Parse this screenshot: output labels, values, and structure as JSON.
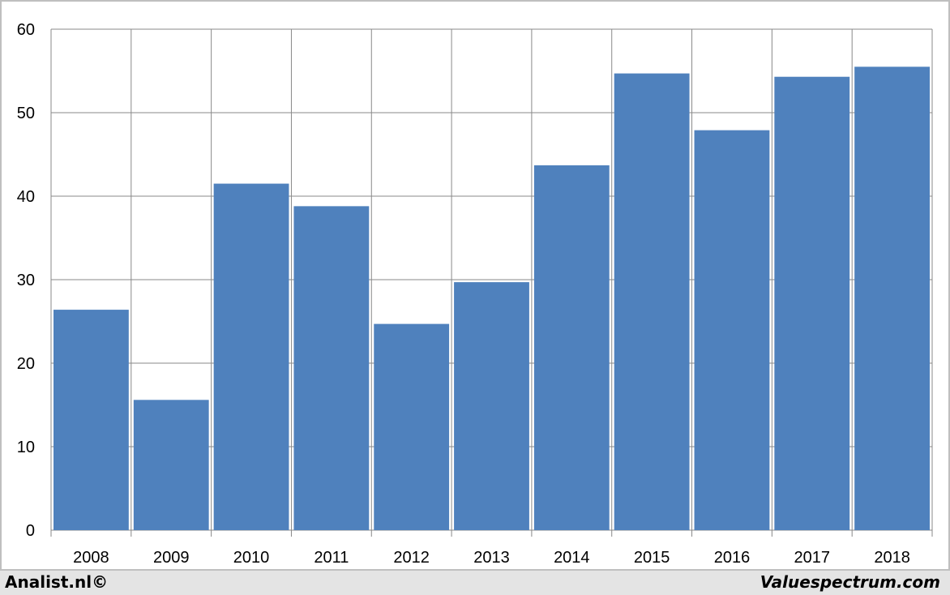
{
  "chart_data": {
    "type": "bar",
    "categories": [
      "2008",
      "2009",
      "2010",
      "2011",
      "2012",
      "2013",
      "2014",
      "2015",
      "2016",
      "2017",
      "2018"
    ],
    "values": [
      26.4,
      15.6,
      41.5,
      38.8,
      24.7,
      29.7,
      43.7,
      54.7,
      47.9,
      54.3,
      55.5
    ],
    "ylim": [
      0,
      60
    ],
    "yticks": [
      0,
      10,
      20,
      30,
      40,
      50,
      60
    ],
    "grid": true,
    "bar_color": "#4f81bd",
    "grid_color": "#898989"
  },
  "footer": {
    "left_text": "Analist.nl©",
    "right_text": "Valuespectrum.com"
  }
}
